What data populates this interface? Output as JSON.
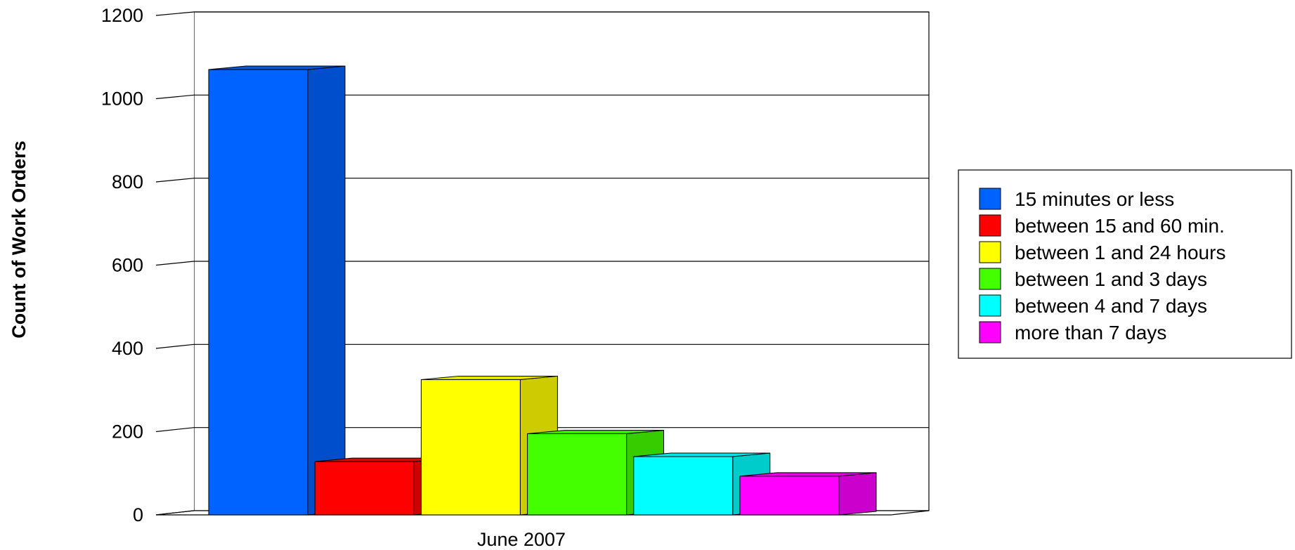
{
  "chart_data": {
    "type": "bar",
    "style": "3d-clustered",
    "title": "",
    "xlabel": "",
    "ylabel": "Count of Work Orders",
    "categories": [
      "June 2007"
    ],
    "ylim": [
      0,
      1200
    ],
    "yticks": [
      0,
      200,
      400,
      600,
      800,
      1000,
      1200
    ],
    "grid": true,
    "legend_position": "right",
    "series": [
      {
        "name": "15 minutes or less",
        "values": [
          1070
        ],
        "color": "#0062ff"
      },
      {
        "name": "between 15 and 60 min.",
        "values": [
          128
        ],
        "color": "#ff0000"
      },
      {
        "name": "between 1 and 24 hours",
        "values": [
          325
        ],
        "color": "#ffff00"
      },
      {
        "name": "between 1 and 3 days",
        "values": [
          195
        ],
        "color": "#44ff00"
      },
      {
        "name": "between 4 and 7 days",
        "values": [
          140
        ],
        "color": "#00ffff"
      },
      {
        "name": "more than 7 days",
        "values": [
          93
        ],
        "color": "#ff00ff"
      }
    ]
  }
}
